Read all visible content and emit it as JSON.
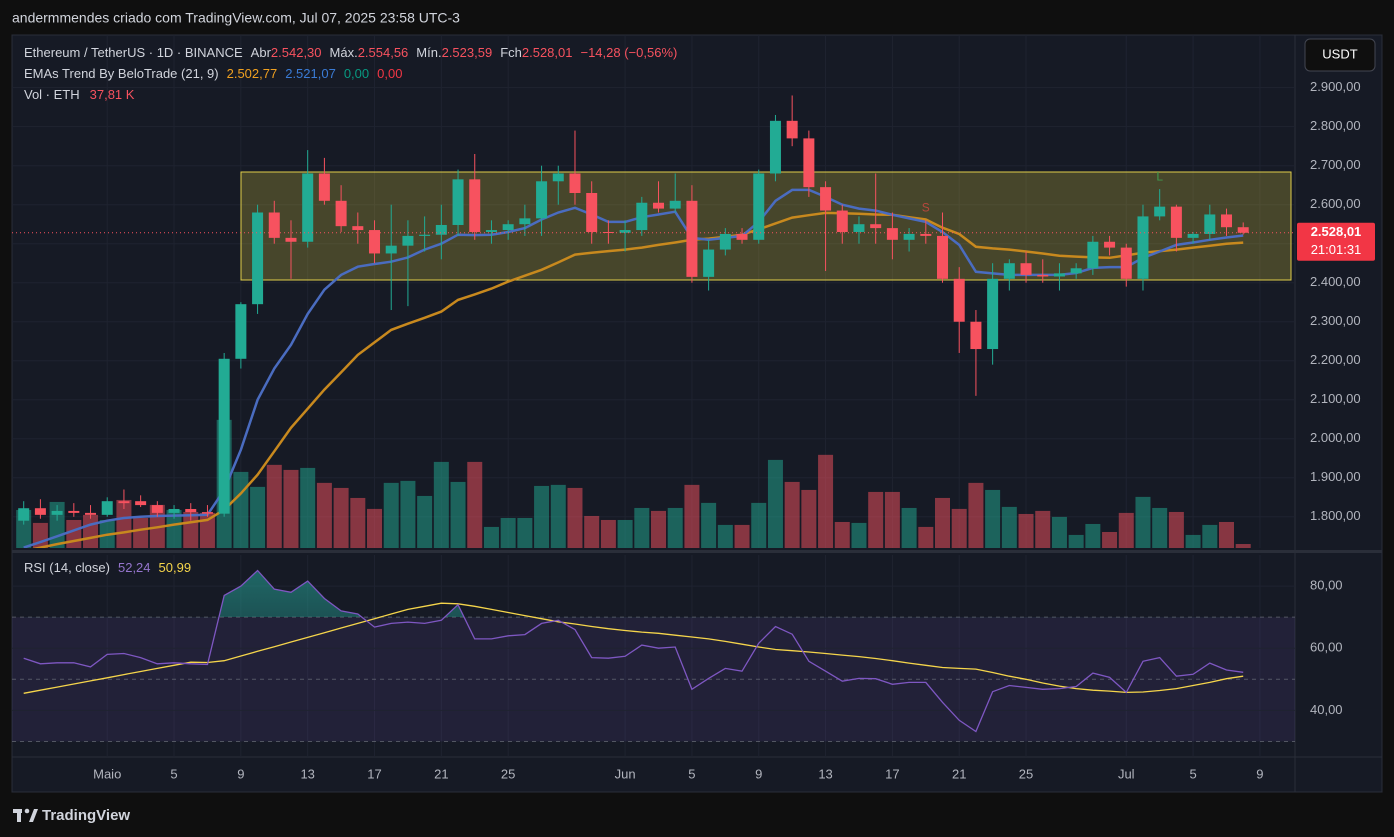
{
  "header": {
    "text": "andermmendes criado com TradingView.com, Jul 07, 2025 23:58 UTC-3"
  },
  "chart_data": {
    "type": "candlestick",
    "symbol": "Ethereum / TetherUS · 1D · BINANCE",
    "ohlc_legend": [
      {
        "label": "Abr",
        "value": "2.542,30"
      },
      {
        "label": "Máx.",
        "value": "2.554,56"
      },
      {
        "label": "Mín.",
        "value": "2.523,59"
      },
      {
        "label": "Fch",
        "value": "2.528,01"
      }
    ],
    "change": "−14,28 (−0,56%)",
    "up_color": "#22ab94",
    "down_color": "#f7525f",
    "candles": {
      "open": [
        1790,
        1822,
        1805,
        1815,
        1810,
        1805,
        1840,
        1840,
        1830,
        1810,
        1820,
        1812,
        1808,
        2205,
        2345,
        2580,
        2515,
        2505,
        2680,
        2610,
        2545,
        2535,
        2475,
        2495,
        2520,
        2523,
        2548,
        2665,
        2530,
        2535,
        2550,
        2565,
        2660,
        2680,
        2630,
        2530,
        2528,
        2535,
        2605,
        2590,
        2610,
        2415,
        2485,
        2525,
        2510,
        2680,
        2815,
        2770,
        2645,
        2585,
        2530,
        2550,
        2540,
        2510,
        2525,
        2520,
        2410,
        2300,
        2230,
        2410,
        2450,
        2420,
        2416,
        2424,
        2437,
        2505,
        2490,
        2410,
        2570,
        2595,
        2515,
        2525,
        2575,
        2542.3
      ],
      "high": [
        1840,
        1845,
        1830,
        1835,
        1830,
        1850,
        1870,
        1855,
        1840,
        1830,
        1835,
        1830,
        2220,
        2350,
        2600,
        2610,
        2560,
        2740,
        2720,
        2650,
        2580,
        2560,
        2600,
        2560,
        2570,
        2600,
        2690,
        2730,
        2560,
        2560,
        2600,
        2700,
        2700,
        2790,
        2660,
        2560,
        2560,
        2620,
        2660,
        2680,
        2650,
        2510,
        2540,
        2540,
        2690,
        2830,
        2880,
        2790,
        2660,
        2600,
        2570,
        2680,
        2580,
        2540,
        2560,
        2580,
        2440,
        2330,
        2450,
        2460,
        2480,
        2460,
        2450,
        2450,
        2520,
        2520,
        2500,
        2600,
        2640,
        2600,
        2530,
        2600,
        2590,
        2554.56
      ],
      "low": [
        1780,
        1795,
        1790,
        1800,
        1795,
        1800,
        1820,
        1825,
        1800,
        1795,
        1790,
        1800,
        1800,
        2180,
        2320,
        2500,
        2410,
        2490,
        2600,
        2530,
        2500,
        2450,
        2330,
        2340,
        2480,
        2460,
        2520,
        2510,
        2500,
        2510,
        2520,
        2520,
        2600,
        2600,
        2500,
        2500,
        2480,
        2520,
        2580,
        2580,
        2400,
        2380,
        2470,
        2500,
        2500,
        2660,
        2750,
        2620,
        2430,
        2500,
        2500,
        2500,
        2460,
        2480,
        2500,
        2400,
        2220,
        2110,
        2190,
        2380,
        2400,
        2400,
        2380,
        2410,
        2420,
        2470,
        2390,
        2380,
        2560,
        2480,
        2500,
        2510,
        2520,
        2523.59
      ],
      "close": [
        1822,
        1805,
        1815,
        1810,
        1805,
        1840,
        1835,
        1830,
        1810,
        1820,
        1812,
        1808,
        2205,
        2345,
        2580,
        2515,
        2505,
        2680,
        2610,
        2545,
        2535,
        2475,
        2495,
        2520,
        2523,
        2548,
        2665,
        2530,
        2535,
        2550,
        2565,
        2660,
        2680,
        2630,
        2530,
        2528,
        2535,
        2605,
        2590,
        2610,
        2415,
        2485,
        2525,
        2510,
        2680,
        2815,
        2770,
        2645,
        2585,
        2530,
        2550,
        2540,
        2510,
        2525,
        2520,
        2410,
        2300,
        2230,
        2410,
        2450,
        2420,
        2416,
        2424,
        2437,
        2505,
        2490,
        2410,
        2570,
        2595,
        2515,
        2525,
        2575,
        2542.3,
        2528.01
      ]
    },
    "xlim": [
      -0.7,
      76.1
    ],
    "xticks": [
      {
        "value": 5,
        "label": "Maio"
      },
      {
        "value": 9,
        "label": "5"
      },
      {
        "value": 13,
        "label": "9"
      },
      {
        "value": 17,
        "label": "13"
      },
      {
        "value": 21,
        "label": "17"
      },
      {
        "value": 25,
        "label": "21"
      },
      {
        "value": 29,
        "label": "25"
      },
      {
        "value": 36,
        "label": "Jun"
      },
      {
        "value": 40,
        "label": "5"
      },
      {
        "value": 44,
        "label": "9"
      },
      {
        "value": 48,
        "label": "13"
      },
      {
        "value": 52,
        "label": "17"
      },
      {
        "value": 56,
        "label": "21"
      },
      {
        "value": 60,
        "label": "25"
      },
      {
        "value": 66,
        "label": "Jul"
      },
      {
        "value": 70,
        "label": "5"
      },
      {
        "value": 74,
        "label": "9"
      }
    ],
    "ylim": [
      1720,
      3035
    ],
    "yticks": [
      {
        "value": 2900,
        "label": "2.900,00"
      },
      {
        "value": 2800,
        "label": "2.800,00"
      },
      {
        "value": 2700,
        "label": "2.700,00"
      },
      {
        "value": 2600,
        "label": "2.600,00"
      },
      {
        "value": 2500,
        "label": "2.500,00"
      },
      {
        "value": 2400,
        "label": "2.400,00"
      },
      {
        "value": 2300,
        "label": "2.300,00"
      },
      {
        "value": 2200,
        "label": "2.200,00"
      },
      {
        "value": 2100,
        "label": "2.100,00"
      },
      {
        "value": 2000,
        "label": "2.000,00"
      },
      {
        "value": 1900,
        "label": "1.900,00"
      },
      {
        "value": 1800,
        "label": "1.800,00"
      }
    ],
    "grid": true,
    "currency": "USDT",
    "last_price_label": "2.528,01",
    "countdown": "21:01:31",
    "indicator": {
      "title": "EMAs Trend By BeloTrade (21, 9)",
      "series": [
        {
          "color": "#c8891e",
          "label_color": "#f0a020",
          "value_label": "2.502,77",
          "values": [
            1712,
            1721,
            1730,
            1738,
            1746,
            1754,
            1760,
            1767,
            1773,
            1780,
            1786,
            1792,
            1818,
            1860,
            1908,
            1968,
            2028,
            2077,
            2126,
            2170,
            2215,
            2247,
            2279,
            2295,
            2310,
            2326,
            2356,
            2370,
            2385,
            2403,
            2418,
            2433,
            2452,
            2472,
            2477,
            2481,
            2485,
            2490,
            2497,
            2503,
            2510,
            2513,
            2518,
            2523,
            2537,
            2552,
            2567,
            2573,
            2579,
            2578,
            2577,
            2575,
            2574,
            2568,
            2562,
            2541,
            2525,
            2492,
            2488,
            2485,
            2480,
            2475,
            2469,
            2467,
            2465,
            2464,
            2470,
            2477,
            2481,
            2485,
            2490,
            2495,
            2500,
            2502.77
          ]
        },
        {
          "color": "#4a6cc0",
          "label_color": "#3a7bd5",
          "value_label": "2.521,07",
          "values": [
            1721,
            1735,
            1750,
            1765,
            1780,
            1790,
            1797,
            1800,
            1802,
            1803,
            1804,
            1805,
            1869,
            1972,
            2100,
            2180,
            2241,
            2320,
            2382,
            2420,
            2441,
            2448,
            2454,
            2465,
            2485,
            2500,
            2523,
            2522,
            2523,
            2530,
            2540,
            2562,
            2580,
            2592,
            2575,
            2556,
            2556,
            2568,
            2575,
            2582,
            2515,
            2510,
            2515,
            2520,
            2556,
            2610,
            2638,
            2638,
            2620,
            2600,
            2590,
            2585,
            2574,
            2565,
            2556,
            2530,
            2497,
            2428,
            2424,
            2420,
            2420,
            2420,
            2420,
            2425,
            2438,
            2440,
            2440,
            2464,
            2480,
            2497,
            2503,
            2510,
            2516,
            2521.07
          ]
        }
      ],
      "extra_labels": [
        {
          "text": "0,00",
          "color": "#089981"
        },
        {
          "text": "0,00",
          "color": "#f23645"
        }
      ]
    },
    "markers": [
      {
        "label": "S",
        "index": 54,
        "color": "#b8473c"
      },
      {
        "label": "L",
        "index": 68,
        "color": "#3f9a4e"
      }
    ],
    "volume": {
      "title": "Vol · ETH",
      "value_label": "37,81 K",
      "ylim": [
        0,
        1300
      ],
      "values": [
        361,
        238,
        437,
        266,
        314,
        266,
        456,
        285,
        409,
        361,
        342,
        333,
        1216,
        722,
        580,
        789,
        741,
        760,
        618,
        570,
        475,
        371,
        618,
        637,
        494,
        817,
        627,
        817,
        200,
        285,
        285,
        589,
        599,
        570,
        304,
        266,
        266,
        380,
        352,
        380,
        599,
        428,
        219,
        219,
        428,
        836,
        627,
        551,
        884,
        247,
        238,
        532,
        532,
        380,
        200,
        475,
        371,
        618,
        551,
        390,
        323,
        352,
        295,
        124,
        228,
        152,
        333,
        485,
        380,
        342,
        124,
        219,
        247,
        37.81
      ]
    },
    "rsi": {
      "title": "RSI (14, close)",
      "ylim": [
        25,
        90
      ],
      "yticks": [
        {
          "value": 80,
          "label": "80,00"
        },
        {
          "value": 60,
          "label": "60,00"
        },
        {
          "value": 40,
          "label": "40,00"
        }
      ],
      "levels": [
        70,
        50,
        30
      ],
      "series": [
        {
          "color": "#7e57c2",
          "label_color": "#9575cd",
          "value_label": "52,24",
          "values": [
            56.8,
            55,
            55.3,
            55.3,
            54,
            58,
            58.3,
            57,
            55,
            55.3,
            55,
            54.8,
            77,
            80,
            85,
            79,
            78,
            81.6,
            76,
            72,
            71,
            66.8,
            68,
            68.4,
            68,
            69,
            74,
            63,
            63,
            64,
            64.4,
            68,
            69,
            66,
            57,
            56.8,
            57.4,
            61,
            60,
            60.4,
            46.8,
            50.3,
            53.5,
            52.6,
            61.6,
            67,
            64.5,
            55.8,
            52.6,
            49.4,
            50.3,
            50.2,
            48.4,
            49,
            49,
            42.6,
            36.8,
            33.2,
            46,
            48,
            47.4,
            46.8,
            47,
            47.7,
            52,
            50.6,
            45.8,
            55.8,
            57,
            51,
            51.6,
            55.2,
            53,
            52.24
          ]
        },
        {
          "color": "#f5d54b",
          "label_color": "#f5d54b",
          "value_label": "50,99",
          "values": [
            45.5,
            46.5,
            47.5,
            48.5,
            49.5,
            50.5,
            51.5,
            52.5,
            53.5,
            54.5,
            55.5,
            55.4,
            56,
            57.5,
            59,
            60.5,
            62,
            63.5,
            65,
            66.5,
            68,
            69.5,
            71,
            72.5,
            73.5,
            74.5,
            74.3,
            73.5,
            72.5,
            71.5,
            70.5,
            69.5,
            68.5,
            67.8,
            67,
            66.3,
            65.7,
            65.2,
            64.8,
            64.2,
            63.6,
            63,
            62.2,
            61.3,
            60.4,
            59.6,
            59.2,
            58.8,
            58.3,
            57.8,
            57.3,
            56.7,
            56,
            55.2,
            54.5,
            53.8,
            53.5,
            53.3,
            52.2,
            51,
            50,
            48.8,
            47.8,
            47,
            46.5,
            46.2,
            45.8,
            45.9,
            46.4,
            47,
            48,
            49,
            50.2,
            50.99
          ]
        }
      ]
    }
  },
  "footer": {
    "logo": "TradingView"
  }
}
